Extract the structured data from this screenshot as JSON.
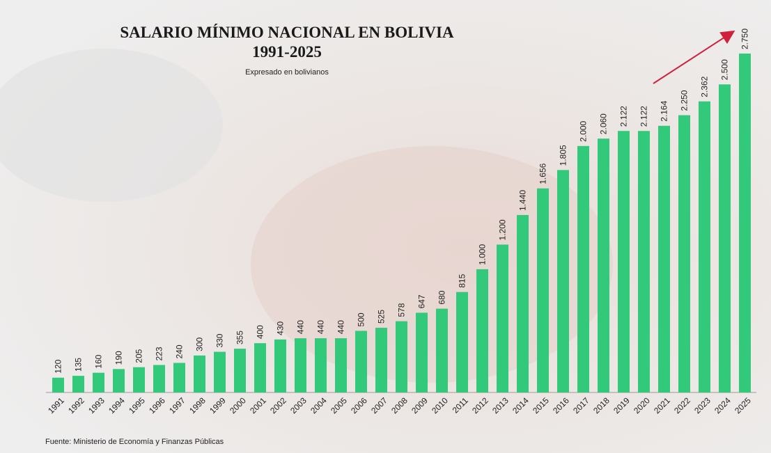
{
  "chart_data": {
    "type": "bar",
    "title": [
      "SALARIO MÍNIMO NACIONAL EN BOLIVIA",
      "1991-2025"
    ],
    "subtitle": "Expresado en bolivianos",
    "source": "Fuente: Ministerio de Economía y Finanzas Públicas",
    "categories": [
      "1991",
      "1992",
      "1993",
      "1994",
      "1995",
      "1996",
      "1997",
      "1998",
      "1999",
      "2000",
      "2001",
      "2002",
      "2003",
      "2004",
      "2005",
      "2006",
      "2007",
      "2008",
      "2009",
      "2010",
      "2011",
      "2012",
      "2013",
      "2014",
      "2015",
      "2016",
      "2017",
      "2018",
      "2019",
      "2020",
      "2021",
      "2022",
      "2023",
      "2024",
      "2025"
    ],
    "values": [
      120,
      135,
      160,
      190,
      205,
      223,
      240,
      300,
      330,
      355,
      400,
      430,
      440,
      440,
      440,
      500,
      525,
      578,
      647,
      680,
      815,
      1000,
      1200,
      1440,
      1656,
      1805,
      2000,
      2060,
      2122,
      2122,
      2164,
      2250,
      2362,
      2500,
      2750
    ],
    "value_labels": [
      "120",
      "135",
      "160",
      "190",
      "205",
      "223",
      "240",
      "300",
      "330",
      "355",
      "400",
      "430",
      "440",
      "440",
      "440",
      "500",
      "525",
      "578",
      "647",
      "680",
      "815",
      "1.000",
      "1.200",
      "1.440",
      "1.656",
      "1.805",
      "2.000",
      "2.060",
      "2.122",
      "2.122",
      "2.164",
      "2.250",
      "2.362",
      "2.500",
      "2.750"
    ],
    "color": "#33c97a"
  }
}
